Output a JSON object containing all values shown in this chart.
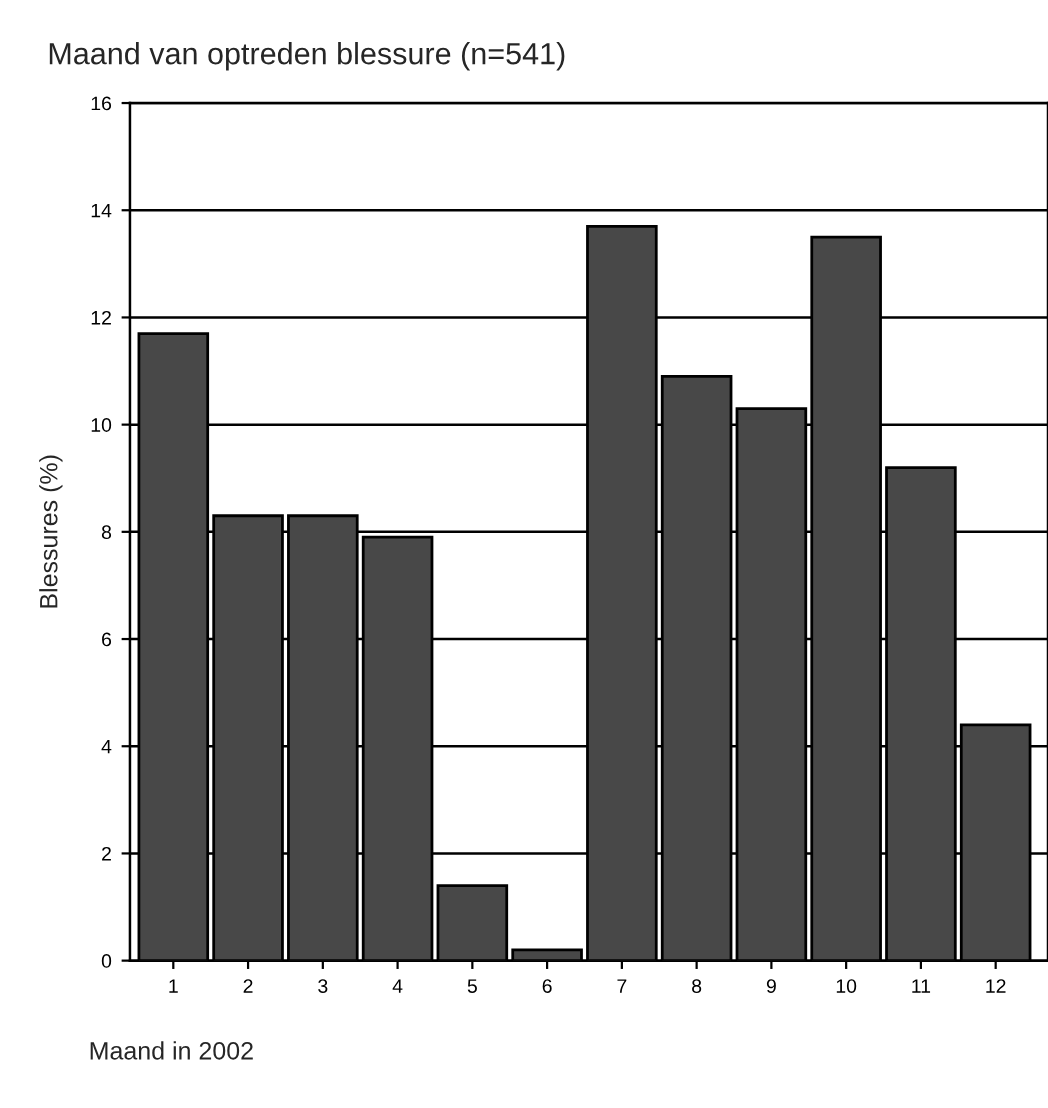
{
  "chart_data": {
    "type": "bar",
    "title": "Maand van optreden blessure (n=541)",
    "xlabel": "Maand in 2002",
    "ylabel": "Blessures (%)",
    "categories": [
      "1",
      "2",
      "3",
      "4",
      "5",
      "6",
      "7",
      "8",
      "9",
      "10",
      "11",
      "12"
    ],
    "values": [
      11.7,
      8.3,
      8.3,
      7.9,
      1.4,
      0.2,
      13.7,
      10.9,
      10.3,
      13.5,
      9.2,
      4.4
    ],
    "color": "#484848",
    "ylim": [
      0,
      16
    ],
    "yticks": [
      0,
      2,
      4,
      6,
      8,
      10,
      12,
      14,
      16
    ],
    "grid": "y"
  }
}
